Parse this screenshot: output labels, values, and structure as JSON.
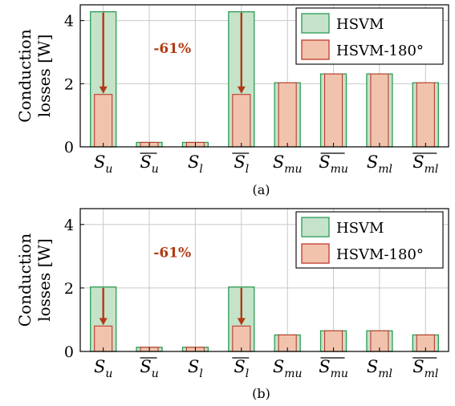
{
  "chart_data": [
    {
      "type": "bar",
      "panel": "(a)",
      "ylabel": [
        "Conduction",
        "losses [W]"
      ],
      "ylim": [
        0,
        4.5
      ],
      "yticks": [
        0,
        2,
        4
      ],
      "grid": true,
      "legend_position": "top-right",
      "categories": [
        {
          "base": "S",
          "bar": false,
          "sub": "u"
        },
        {
          "base": "S",
          "bar": true,
          "sub": "u"
        },
        {
          "base": "S",
          "bar": false,
          "sub": "l"
        },
        {
          "base": "S",
          "bar": true,
          "sub": "l"
        },
        {
          "base": "S",
          "bar": false,
          "sub": "mu"
        },
        {
          "base": "S",
          "bar": true,
          "sub": "mu"
        },
        {
          "base": "S",
          "bar": false,
          "sub": "ml"
        },
        {
          "base": "S",
          "bar": true,
          "sub": "ml"
        }
      ],
      "series": [
        {
          "name": "HSVM",
          "color": "#c5e3c9",
          "edge": "#2e9a57",
          "values": [
            4.28,
            0.14,
            0.14,
            4.28,
            2.03,
            2.31,
            2.31,
            2.03
          ]
        },
        {
          "name": "HSVM-180°",
          "color": "#f1c3ad",
          "edge": "#c0392b",
          "values": [
            1.66,
            0.14,
            0.14,
            1.66,
            2.03,
            2.31,
            2.31,
            2.03
          ]
        }
      ],
      "annotation": {
        "text": "-61%",
        "arrow_color": "#b23a14",
        "arrow_categories": [
          0,
          3
        ]
      }
    },
    {
      "type": "bar",
      "panel": "(b)",
      "ylabel": [
        "Conduction",
        "losses [W]"
      ],
      "ylim": [
        0,
        4.5
      ],
      "yticks": [
        0,
        2,
        4
      ],
      "grid": true,
      "legend_position": "top-right",
      "categories": [
        {
          "base": "S",
          "bar": false,
          "sub": "u"
        },
        {
          "base": "S",
          "bar": true,
          "sub": "u"
        },
        {
          "base": "S",
          "bar": false,
          "sub": "l"
        },
        {
          "base": "S",
          "bar": true,
          "sub": "l"
        },
        {
          "base": "S",
          "bar": false,
          "sub": "mu"
        },
        {
          "base": "S",
          "bar": true,
          "sub": "mu"
        },
        {
          "base": "S",
          "bar": false,
          "sub": "ml"
        },
        {
          "base": "S",
          "bar": true,
          "sub": "ml"
        }
      ],
      "series": [
        {
          "name": "HSVM",
          "color": "#c5e3c9",
          "edge": "#2e9a57",
          "values": [
            2.03,
            0.13,
            0.13,
            2.03,
            0.52,
            0.65,
            0.65,
            0.52
          ]
        },
        {
          "name": "HSVM-180°",
          "color": "#f1c3ad",
          "edge": "#c0392b",
          "values": [
            0.8,
            0.13,
            0.13,
            0.8,
            0.52,
            0.65,
            0.65,
            0.52
          ]
        }
      ],
      "annotation": {
        "text": "-61%",
        "arrow_color": "#b23a14",
        "arrow_categories": [
          0,
          3
        ]
      }
    }
  ]
}
